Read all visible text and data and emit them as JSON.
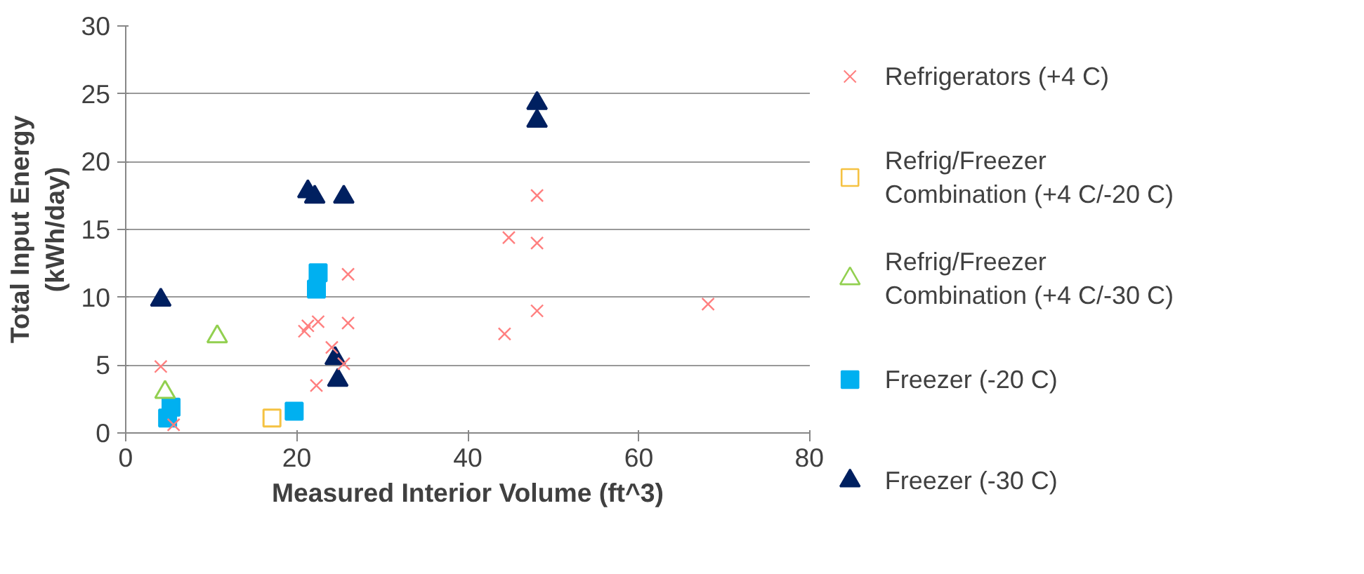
{
  "chart_data": {
    "type": "scatter",
    "xlabel": "Measured Interior Volume (ft^3)",
    "ylabel": "Total Input Energy (kWh/day)",
    "xlim": [
      0,
      80
    ],
    "xticks": [
      0,
      20,
      40,
      60,
      80
    ],
    "ylim": [
      0,
      30
    ],
    "yticks": [
      0,
      5,
      10,
      15,
      20,
      25,
      30
    ],
    "grid": "y",
    "legend": "right",
    "series": [
      {
        "name": "Refrigerators (+4 C)",
        "color": "#ff7f7f",
        "marker": "cross",
        "x": [
          4.1,
          5.6,
          21.3,
          20.9,
          22.5,
          26,
          26,
          24.1,
          25.5,
          22.3,
          44.8,
          48.1,
          48.1,
          48.1,
          44.3,
          68.1
        ],
        "values": [
          4.9,
          0.6,
          7.9,
          7.5,
          8.2,
          11.7,
          8.1,
          6.3,
          5.1,
          3.5,
          14.4,
          17.5,
          14.0,
          9.0,
          7.3,
          9.5
        ]
      },
      {
        "name": "Refrig/Freezer Combination (+4 C/-20 C)",
        "color": "#f5c242",
        "marker": "square",
        "x": [
          17.1
        ],
        "values": [
          1.1
        ]
      },
      {
        "name": "Refrig/Freezer Combination (+4 C/-30 C)",
        "color": "#92d050",
        "marker": "triangle",
        "x": [
          10.7,
          4.6
        ],
        "values": [
          7.1,
          3.0
        ]
      },
      {
        "name": "Freezer (-20 C)",
        "color": "#00b0f0",
        "marker": "square",
        "x": [
          5.3,
          4.9,
          19.7,
          22.5,
          22.3
        ],
        "values": [
          1.9,
          1.1,
          1.6,
          11.8,
          10.6
        ]
      },
      {
        "name": "Freezer (-30 C)",
        "color": "#002060",
        "marker": "triangle",
        "x": [
          4.1,
          21.3,
          22.1,
          25.5,
          24.5,
          24.8,
          48.1,
          48.1
        ],
        "values": [
          9.8,
          17.8,
          17.4,
          17.4,
          5.5,
          3.9,
          24.3,
          23.0
        ]
      }
    ]
  }
}
